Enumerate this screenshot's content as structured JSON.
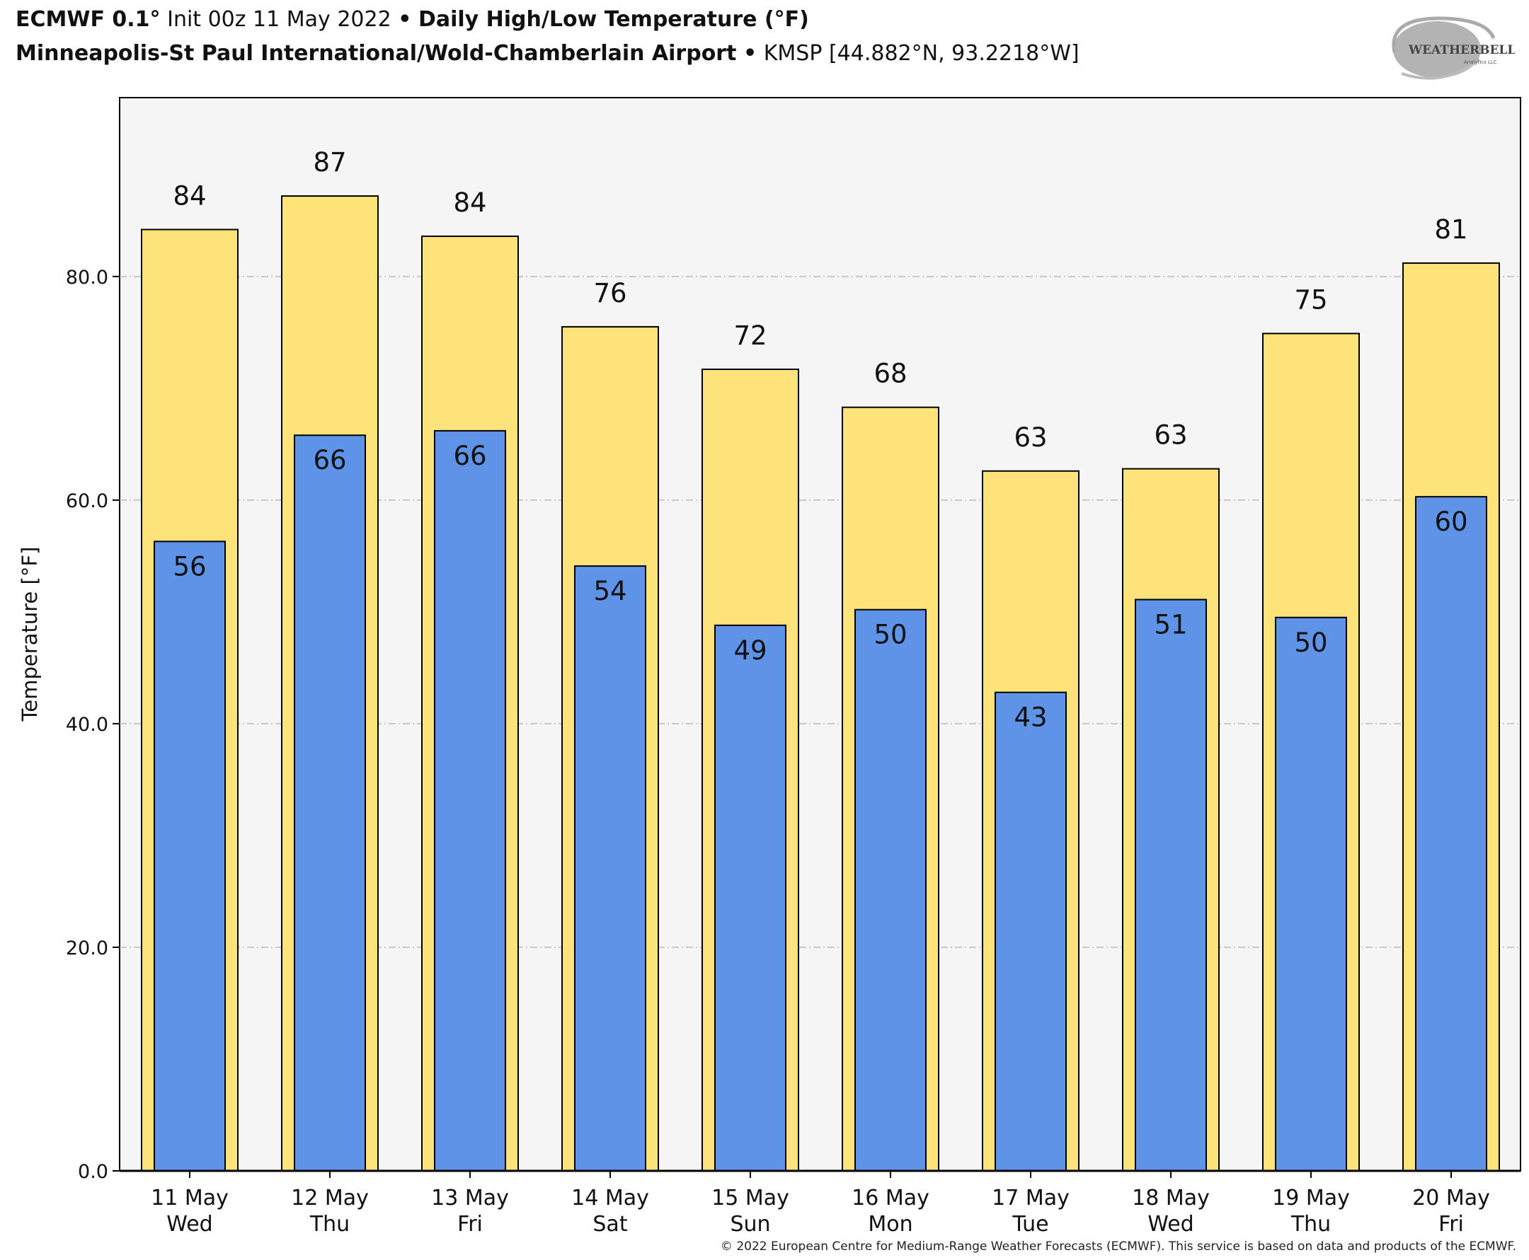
{
  "header": {
    "model": "ECMWF 0.1°",
    "init": "Init 00z 11 May 2022",
    "sep": "•",
    "product": "Daily High/Low Temperature (°F)",
    "station_name": "Minneapolis-St Paul International/Wold-Chamberlain Airport",
    "station_id": "KMSP [44.882°N, 93.2218°W]"
  },
  "logo": {
    "text": "WeatherBELL",
    "subtext": "Analytics LLC"
  },
  "footer": {
    "copyright": "© 2022 European Centre for Medium-Range Weather Forecasts (ECMWF). This service is based on data and products of the ECMWF."
  },
  "chart_data": {
    "type": "bar",
    "title": "Daily High/Low Temperature (°F)",
    "xlabel": "",
    "ylabel": "Temperature [°F]",
    "ylim": [
      0,
      96
    ],
    "yticks": [
      0,
      20,
      40,
      60,
      80
    ],
    "ytick_labels": [
      "0.0",
      "20.0",
      "40.0",
      "60.0",
      "80.0"
    ],
    "grid": true,
    "categories": [
      "11 May",
      "12 May",
      "13 May",
      "14 May",
      "15 May",
      "16 May",
      "17 May",
      "18 May",
      "19 May",
      "20 May"
    ],
    "weekdays": [
      "Wed",
      "Thu",
      "Fri",
      "Sat",
      "Sun",
      "Mon",
      "Tue",
      "Wed",
      "Thu",
      "Fri"
    ],
    "series": [
      {
        "name": "High",
        "color": "#fde37a",
        "values": [
          84.2,
          87.2,
          83.6,
          75.5,
          71.7,
          68.3,
          62.6,
          62.8,
          74.9,
          81.2
        ],
        "labels": [
          "84",
          "87",
          "84",
          "76",
          "72",
          "68",
          "63",
          "63",
          "75",
          "81"
        ]
      },
      {
        "name": "Low",
        "color": "#5f93e8",
        "values": [
          56.3,
          65.8,
          66.2,
          54.1,
          48.8,
          50.2,
          42.8,
          51.1,
          49.5,
          60.3
        ],
        "labels": [
          "56",
          "66",
          "66",
          "54",
          "49",
          "50",
          "43",
          "51",
          "50",
          "60"
        ]
      }
    ]
  }
}
